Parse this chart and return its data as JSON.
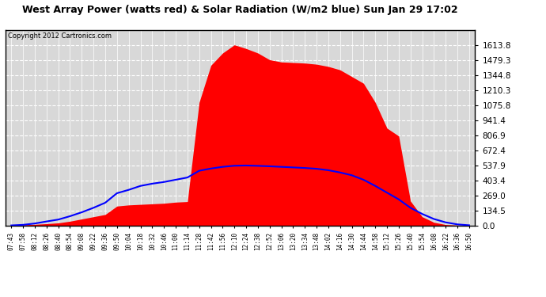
{
  "title": "West Array Power (watts red) & Solar Radiation (W/m2 blue) Sun Jan 29 17:02",
  "copyright": "Copyright 2012 Cartronics.com",
  "background_color": "#ffffff",
  "plot_bg_color": "#d8d8d8",
  "y_max": 1748.0,
  "y_ticks": [
    0.0,
    134.5,
    269.0,
    403.4,
    537.9,
    672.4,
    806.9,
    941.4,
    1075.8,
    1210.3,
    1344.8,
    1479.3,
    1613.8
  ],
  "x_labels": [
    "07:43",
    "07:58",
    "08:12",
    "08:26",
    "08:40",
    "08:54",
    "09:08",
    "09:22",
    "09:36",
    "09:50",
    "10:04",
    "10:18",
    "10:32",
    "10:46",
    "11:00",
    "11:14",
    "11:28",
    "11:42",
    "11:56",
    "12:10",
    "12:24",
    "12:38",
    "12:52",
    "13:06",
    "13:20",
    "13:34",
    "13:48",
    "14:02",
    "14:16",
    "14:30",
    "14:44",
    "14:58",
    "15:12",
    "15:26",
    "15:40",
    "15:54",
    "16:08",
    "16:22",
    "16:36",
    "16:50"
  ],
  "red_data": [
    5,
    8,
    12,
    18,
    25,
    40,
    60,
    80,
    100,
    175,
    185,
    190,
    195,
    200,
    210,
    215,
    1100,
    1430,
    1540,
    1613,
    1580,
    1540,
    1480,
    1460,
    1455,
    1450,
    1440,
    1420,
    1390,
    1330,
    1270,
    1100,
    870,
    800,
    220,
    80,
    30,
    10,
    5,
    3
  ],
  "blue_data": [
    3,
    8,
    20,
    38,
    55,
    85,
    120,
    160,
    205,
    290,
    320,
    355,
    375,
    390,
    410,
    430,
    490,
    510,
    525,
    535,
    537,
    534,
    530,
    525,
    520,
    515,
    508,
    495,
    475,
    450,
    410,
    355,
    295,
    235,
    160,
    105,
    60,
    30,
    12,
    4
  ],
  "red_color": "#ff0000",
  "blue_color": "#0000ff",
  "grid_color": "#aaaaaa"
}
